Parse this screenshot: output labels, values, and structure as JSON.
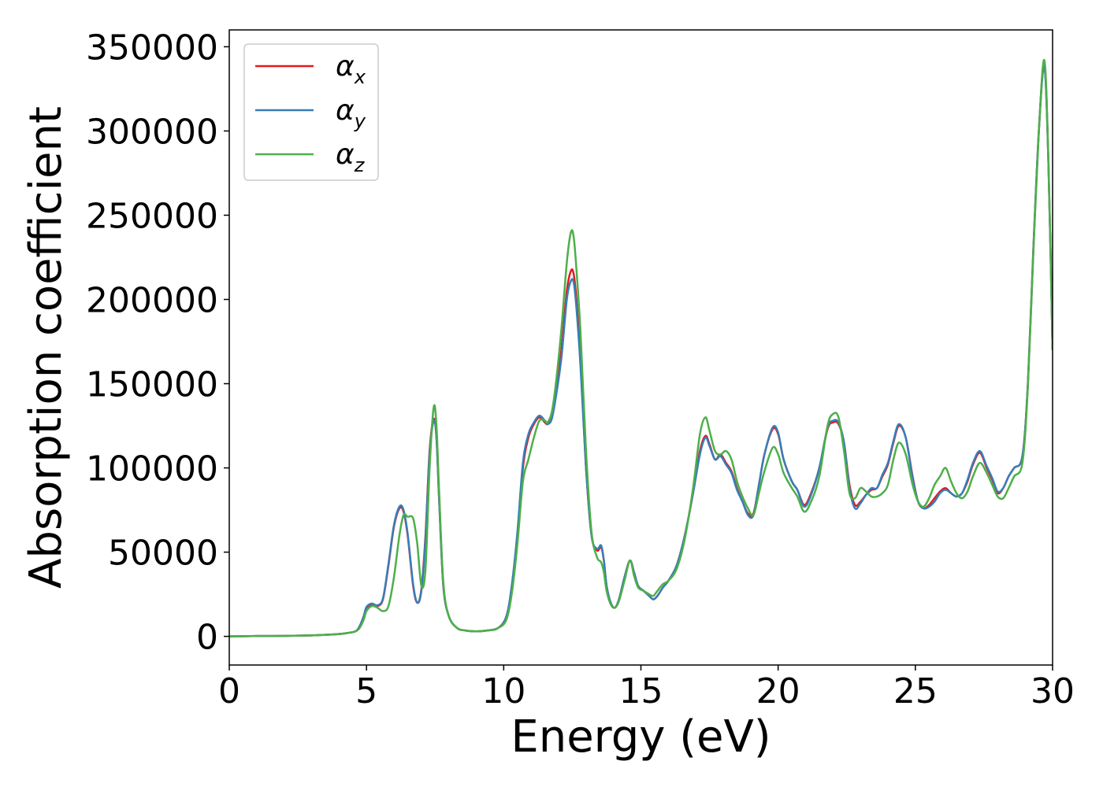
{
  "chart_data": {
    "type": "line",
    "title": "",
    "xlabel": "Energy (eV)",
    "ylabel": "Absorption coefficient",
    "xlim": [
      0,
      30
    ],
    "ylim": [
      -17000,
      360000
    ],
    "xticks": [
      0,
      5,
      10,
      15,
      20,
      25,
      30
    ],
    "yticks": [
      0,
      50000,
      100000,
      150000,
      200000,
      250000,
      300000,
      350000
    ],
    "grid": false,
    "legend_position": "top-left",
    "series": [
      {
        "name": "αx",
        "name_base": "α",
        "name_sub": "x",
        "color": "#e41a1c",
        "x": [
          0,
          1,
          2,
          3,
          3.5,
          4,
          4.3,
          4.6,
          4.75,
          4.9,
          5.0,
          5.2,
          5.4,
          5.6,
          5.8,
          6.0,
          6.2,
          6.35,
          6.5,
          6.7,
          6.85,
          7.0,
          7.15,
          7.3,
          7.45,
          7.55,
          7.65,
          7.8,
          8.0,
          8.3,
          8.6,
          9.0,
          9.4,
          9.8,
          10.1,
          10.3,
          10.5,
          10.7,
          10.9,
          11.1,
          11.3,
          11.5,
          11.6,
          11.75,
          11.9,
          12.1,
          12.3,
          12.45,
          12.55,
          12.65,
          12.8,
          13.0,
          13.2,
          13.4,
          13.55,
          13.65,
          13.75,
          13.9,
          14.05,
          14.2,
          14.4,
          14.6,
          14.75,
          14.9,
          15.1,
          15.3,
          15.45,
          15.6,
          15.8,
          16.0,
          16.3,
          16.6,
          16.9,
          17.15,
          17.35,
          17.5,
          17.7,
          17.9,
          18.1,
          18.3,
          18.5,
          18.7,
          18.9,
          19.1,
          19.3,
          19.5,
          19.8,
          20.0,
          20.2,
          20.5,
          20.7,
          20.95,
          21.2,
          21.5,
          21.8,
          22.0,
          22.2,
          22.4,
          22.6,
          22.8,
          23.0,
          23.2,
          23.4,
          23.6,
          23.8,
          24.0,
          24.2,
          24.4,
          24.65,
          24.9,
          25.1,
          25.3,
          25.5,
          25.7,
          25.9,
          26.1,
          26.3,
          26.5,
          26.7,
          26.9,
          27.1,
          27.35,
          27.6,
          27.8,
          28.0,
          28.2,
          28.4,
          28.6,
          28.9,
          29.1,
          29.3,
          29.5,
          29.7,
          29.85,
          30.0
        ],
        "y": [
          0,
          200,
          300,
          600,
          900,
          1400,
          2000,
          3000,
          6000,
          12000,
          17000,
          18500,
          18000,
          22000,
          42000,
          65000,
          76000,
          74000,
          60000,
          30000,
          20000,
          28000,
          60000,
          110000,
          129000,
          118000,
          80000,
          30000,
          12000,
          5000,
          3500,
          3000,
          3500,
          5000,
          12000,
          30000,
          60000,
          100000,
          118000,
          126000,
          130000,
          127000,
          126000,
          130000,
          145000,
          170000,
          205000,
          217000,
          215000,
          200000,
          165000,
          100000,
          60000,
          51000,
          53000,
          45000,
          30000,
          20000,
          17000,
          22000,
          35000,
          45000,
          38000,
          30000,
          27000,
          24000,
          22000,
          24000,
          29000,
          33000,
          42000,
          60000,
          85000,
          110000,
          119000,
          114000,
          105000,
          108000,
          103000,
          98000,
          88000,
          80000,
          73000,
          73000,
          90000,
          108000,
          123000,
          120000,
          105000,
          92000,
          87000,
          78000,
          85000,
          100000,
          123000,
          127000,
          126000,
          115000,
          90000,
          78000,
          80000,
          84000,
          87000,
          88000,
          95000,
          102000,
          115000,
          125000,
          118000,
          95000,
          80000,
          76000,
          78000,
          82000,
          86000,
          88000,
          85000,
          83000,
          85000,
          92000,
          102000,
          109000,
          100000,
          93000,
          85000,
          88000,
          95000,
          100000,
          107000,
          150000,
          230000,
          300000,
          340000,
          280000,
          170000
        ]
      },
      {
        "name": "αy",
        "name_base": "α",
        "name_sub": "y",
        "color": "#377eb8",
        "x": [
          0,
          1,
          2,
          3,
          3.5,
          4,
          4.3,
          4.6,
          4.75,
          4.9,
          5.0,
          5.2,
          5.4,
          5.6,
          5.8,
          6.0,
          6.2,
          6.35,
          6.5,
          6.7,
          6.85,
          7.0,
          7.15,
          7.3,
          7.45,
          7.55,
          7.65,
          7.8,
          8.0,
          8.3,
          8.6,
          9.0,
          9.4,
          9.8,
          10.1,
          10.3,
          10.5,
          10.7,
          10.9,
          11.1,
          11.3,
          11.5,
          11.6,
          11.75,
          11.9,
          12.1,
          12.3,
          12.45,
          12.55,
          12.65,
          12.8,
          13.0,
          13.2,
          13.4,
          13.55,
          13.65,
          13.75,
          13.9,
          14.05,
          14.2,
          14.4,
          14.6,
          14.75,
          14.9,
          15.1,
          15.3,
          15.45,
          15.6,
          15.8,
          16.0,
          16.3,
          16.6,
          16.9,
          17.15,
          17.35,
          17.5,
          17.7,
          17.9,
          18.1,
          18.3,
          18.5,
          18.7,
          18.9,
          19.1,
          19.3,
          19.5,
          19.8,
          20.0,
          20.2,
          20.5,
          20.7,
          20.95,
          21.2,
          21.5,
          21.8,
          22.0,
          22.2,
          22.4,
          22.6,
          22.8,
          23.0,
          23.2,
          23.4,
          23.6,
          23.8,
          24.0,
          24.2,
          24.4,
          24.65,
          24.9,
          25.1,
          25.3,
          25.5,
          25.7,
          25.9,
          26.1,
          26.3,
          26.5,
          26.7,
          26.9,
          27.1,
          27.35,
          27.6,
          27.8,
          28.0,
          28.2,
          28.4,
          28.6,
          28.9,
          29.1,
          29.3,
          29.5,
          29.7,
          29.85,
          30.0
        ],
        "y": [
          0,
          200,
          300,
          600,
          900,
          1400,
          2000,
          3000,
          6000,
          12000,
          17500,
          19500,
          18500,
          22500,
          43000,
          66000,
          77000,
          75000,
          61000,
          31000,
          20000,
          27000,
          58000,
          108000,
          128000,
          118000,
          80000,
          30000,
          12000,
          5000,
          3500,
          3000,
          3500,
          5000,
          12000,
          31000,
          62000,
          103000,
          120000,
          127000,
          131000,
          128000,
          126000,
          129000,
          142000,
          165000,
          200000,
          211000,
          210000,
          195000,
          160000,
          100000,
          60000,
          52000,
          54000,
          45000,
          30000,
          20000,
          17000,
          22000,
          35000,
          45000,
          38000,
          30000,
          27000,
          24000,
          22000,
          24000,
          29000,
          33000,
          42000,
          60000,
          85000,
          108000,
          118000,
          113000,
          105000,
          107000,
          102000,
          97000,
          87000,
          80000,
          72000,
          72000,
          90000,
          108000,
          124000,
          121000,
          105000,
          92000,
          87000,
          77000,
          84000,
          100000,
          124000,
          128000,
          127000,
          115000,
          88000,
          76000,
          79000,
          84000,
          88000,
          88000,
          96000,
          103000,
          116000,
          126000,
          118000,
          94000,
          80000,
          76000,
          77000,
          80000,
          85000,
          87000,
          85000,
          83000,
          85000,
          93000,
          103000,
          110000,
          101000,
          94000,
          86000,
          88000,
          95000,
          100000,
          107000,
          150000,
          230000,
          300000,
          338000,
          280000,
          170000
        ]
      },
      {
        "name": "αz",
        "name_base": "α",
        "name_sub": "z",
        "color": "#4daf4a",
        "x": [
          0,
          1,
          2,
          3,
          3.5,
          4,
          4.3,
          4.6,
          4.75,
          4.9,
          5.0,
          5.2,
          5.4,
          5.6,
          5.8,
          6.0,
          6.2,
          6.35,
          6.5,
          6.7,
          6.85,
          7.0,
          7.15,
          7.3,
          7.45,
          7.55,
          7.65,
          7.8,
          8.0,
          8.3,
          8.6,
          9.0,
          9.4,
          9.8,
          10.1,
          10.3,
          10.5,
          10.7,
          10.9,
          11.1,
          11.3,
          11.5,
          11.6,
          11.75,
          11.9,
          12.1,
          12.3,
          12.45,
          12.55,
          12.65,
          12.8,
          13.0,
          13.2,
          13.4,
          13.55,
          13.65,
          13.75,
          13.9,
          14.05,
          14.2,
          14.4,
          14.6,
          14.75,
          14.9,
          15.1,
          15.3,
          15.45,
          15.6,
          15.8,
          16.0,
          16.3,
          16.6,
          16.9,
          17.15,
          17.35,
          17.5,
          17.7,
          17.9,
          18.1,
          18.3,
          18.5,
          18.7,
          18.9,
          19.1,
          19.3,
          19.5,
          19.8,
          20.0,
          20.2,
          20.5,
          20.7,
          20.95,
          21.2,
          21.5,
          21.8,
          22.0,
          22.2,
          22.4,
          22.6,
          22.8,
          23.0,
          23.2,
          23.4,
          23.6,
          23.8,
          24.0,
          24.2,
          24.4,
          24.65,
          24.9,
          25.1,
          25.3,
          25.5,
          25.7,
          25.9,
          26.1,
          26.3,
          26.5,
          26.7,
          26.9,
          27.1,
          27.35,
          27.6,
          27.8,
          28.0,
          28.2,
          28.4,
          28.6,
          28.9,
          29.1,
          29.3,
          29.5,
          29.7,
          29.85,
          30.0
        ],
        "y": [
          0,
          200,
          300,
          600,
          900,
          1400,
          2000,
          3000,
          5000,
          10000,
          15000,
          18000,
          17000,
          15000,
          18000,
          35000,
          60000,
          72000,
          71000,
          70000,
          55000,
          30000,
          40000,
          100000,
          136000,
          125000,
          85000,
          32000,
          12000,
          5000,
          3500,
          3000,
          3500,
          5000,
          10000,
          26000,
          55000,
          92000,
          105000,
          118000,
          128000,
          128000,
          127000,
          133000,
          150000,
          182000,
          222000,
          240000,
          237000,
          218000,
          180000,
          110000,
          62000,
          47000,
          44000,
          38000,
          27000,
          19000,
          17000,
          21000,
          33000,
          45000,
          36000,
          29000,
          27000,
          25000,
          24000,
          27000,
          31000,
          33000,
          40000,
          58000,
          88000,
          120000,
          130000,
          122000,
          110000,
          108000,
          110000,
          105000,
          92000,
          83000,
          76000,
          72000,
          85000,
          98000,
          112000,
          108000,
          97000,
          88000,
          83000,
          74000,
          80000,
          95000,
          125000,
          132000,
          130000,
          110000,
          85000,
          82000,
          88000,
          86000,
          83000,
          83000,
          85000,
          90000,
          105000,
          115000,
          108000,
          90000,
          80000,
          77000,
          82000,
          90000,
          95000,
          100000,
          92000,
          85000,
          82000,
          86000,
          95000,
          103000,
          97000,
          90000,
          83000,
          82000,
          88000,
          95000,
          103000,
          148000,
          228000,
          300000,
          342000,
          282000,
          170000
        ]
      }
    ]
  }
}
